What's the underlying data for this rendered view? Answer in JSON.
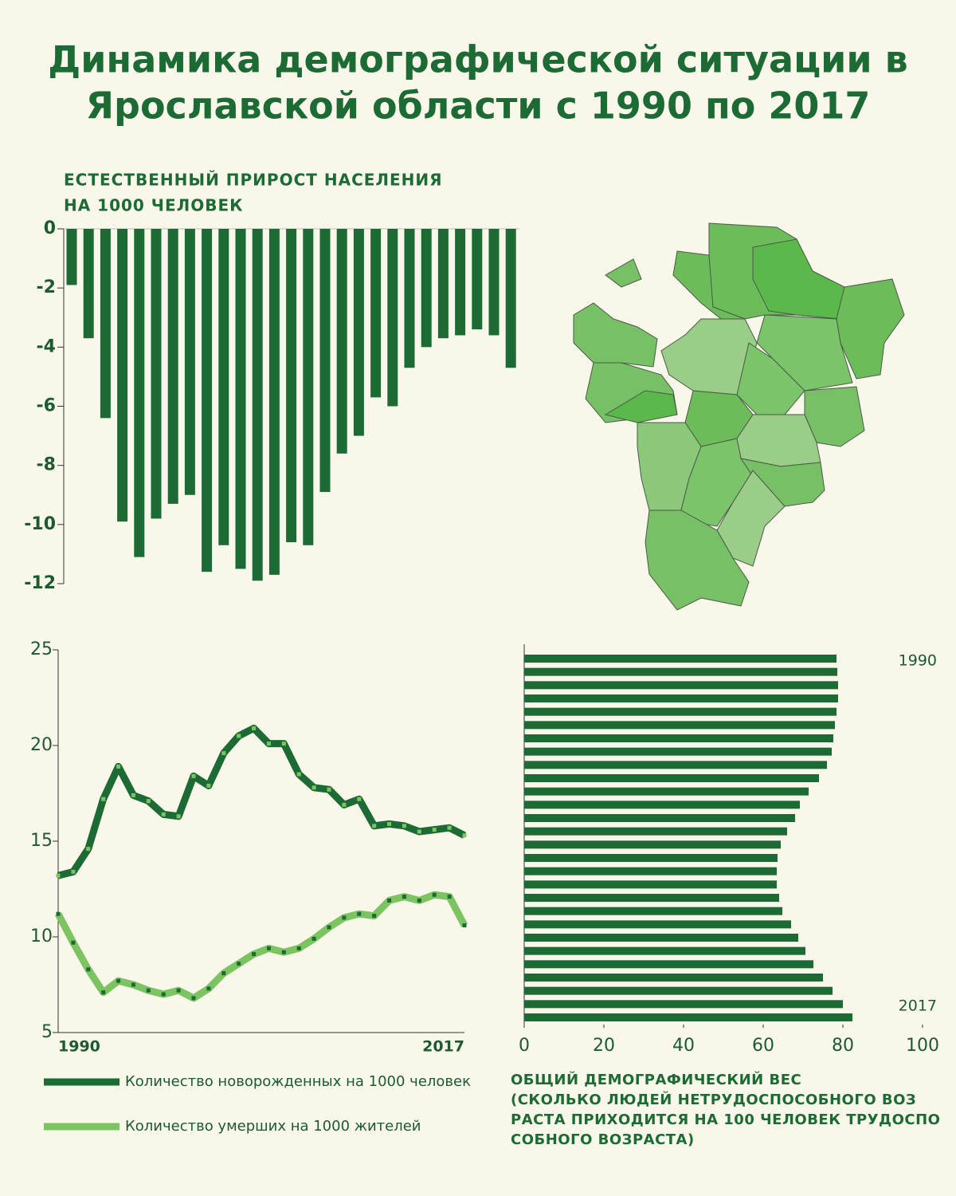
{
  "title": [
    "Динамика демографической  ситуации в",
    "Ярославской области с 1990 по 2017"
  ],
  "chart_data": [
    {
      "type": "bar",
      "title": [
        "ЕСТЕСТВЕННЫЙ ПРИРОСТ НАСЕЛЕНИЯ",
        "НА 1000 ЧЕЛОВЕК"
      ],
      "color": "#1d6b34",
      "values": [
        -1.9,
        -3.7,
        -6.4,
        -9.9,
        -11.1,
        -9.8,
        -9.3,
        -9.0,
        -11.6,
        -10.7,
        -11.5,
        -11.9,
        -11.7,
        -10.6,
        -10.7,
        -8.9,
        -7.6,
        -7.0,
        -5.7,
        -6.0,
        -4.7,
        -4.0,
        -3.7,
        -3.6,
        -3.4,
        -3.6,
        -4.7
      ],
      "ylim": [
        -12,
        0
      ],
      "yticks": [
        0,
        -2,
        -4,
        -6,
        -8,
        -10,
        -12
      ]
    },
    {
      "type": "line",
      "categories": [
        "1990",
        null,
        null,
        null,
        null,
        null,
        null,
        null,
        null,
        null,
        null,
        null,
        null,
        null,
        null,
        null,
        null,
        null,
        null,
        null,
        null,
        null,
        null,
        null,
        null,
        null,
        null,
        "2017"
      ],
      "series": [
        {
          "name": "Количество новорожденных на 1000 человек",
          "color": "#1d6b34",
          "values": [
            13.2,
            13.4,
            14.6,
            17.2,
            18.9,
            17.4,
            17.1,
            16.4,
            16.3,
            18.4,
            17.9,
            19.6,
            20.5,
            20.9,
            20.1,
            20.1,
            18.5,
            17.8,
            17.7,
            16.9,
            17.2,
            15.8,
            15.9,
            15.8,
            15.5,
            15.6,
            15.7,
            15.3
          ]
        },
        {
          "name": "Количество умерших на 1000 жителей",
          "color": "#7cc462",
          "values": [
            11.2,
            9.7,
            8.3,
            7.1,
            7.7,
            7.5,
            7.2,
            7.0,
            7.2,
            6.8,
            7.3,
            8.1,
            8.6,
            9.1,
            9.4,
            9.2,
            9.4,
            9.9,
            10.5,
            11.0,
            11.2,
            11.1,
            11.9,
            12.1,
            11.9,
            12.2,
            12.1,
            10.6
          ]
        }
      ],
      "ylim": [
        5,
        25
      ],
      "yticks": [
        25,
        20,
        15,
        10,
        5
      ]
    },
    {
      "type": "hbar",
      "title": [
        "ОБЩИЙ ДЕМОГРАФИЧЕСКИЙ ВЕС",
        "(СКОЛЬКО ЛЮДЕЙ НЕТРУДОСПОСОБНОГО ВОЗ",
        "РАСТА ПРИХОДИТСЯ НА 100 ЧЕЛОВЕК ТРУДОСПО",
        "СОБНОГО ВОЗРАСТА)"
      ],
      "color": "#1d6b34",
      "categories": [
        "1990",
        null,
        null,
        null,
        null,
        null,
        null,
        null,
        null,
        null,
        null,
        null,
        null,
        null,
        null,
        null,
        null,
        null,
        null,
        null,
        null,
        null,
        null,
        null,
        null,
        null,
        null,
        "2017"
      ],
      "values": [
        78.4,
        78.6,
        78.8,
        78.8,
        78.4,
        78.0,
        77.6,
        77.2,
        76.0,
        74.0,
        71.4,
        69.2,
        68.0,
        66.0,
        64.4,
        63.6,
        63.4,
        63.4,
        64.0,
        64.8,
        67.0,
        68.8,
        70.6,
        72.6,
        75.0,
        77.4,
        80.0,
        82.4
      ],
      "xlim": [
        0,
        100
      ],
      "xticks": [
        0,
        20,
        40,
        60,
        80,
        100
      ]
    }
  ]
}
